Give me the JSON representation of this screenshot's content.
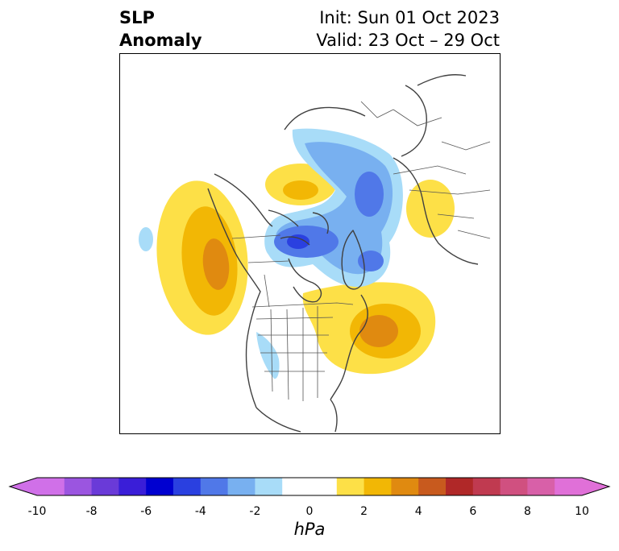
{
  "title": {
    "left_line1": "SLP",
    "left_line2": "Anomaly",
    "right_line1": "Init: Sun 01 Oct 2023",
    "right_line2": "Valid: 23 Oct – 29 Oct"
  },
  "colorbar": {
    "unit": "hPa",
    "ticks": [
      "-10",
      "-8",
      "-6",
      "-4",
      "-2",
      "0",
      "2",
      "4",
      "6",
      "8",
      "10"
    ],
    "tick_values": [
      -10,
      -8,
      -6,
      -4,
      -2,
      0,
      2,
      4,
      6,
      8,
      10
    ],
    "range": [
      -10,
      10
    ],
    "extend": "both",
    "levels": [
      {
        "from": -10,
        "to": -9,
        "color": "#d070e8"
      },
      {
        "from": -9,
        "to": -8,
        "color": "#9b55e0"
      },
      {
        "from": -8,
        "to": -7,
        "color": "#6a3ad8"
      },
      {
        "from": -7,
        "to": -6,
        "color": "#3a1ed8"
      },
      {
        "from": -6,
        "to": -5,
        "color": "#0000d0"
      },
      {
        "from": -5,
        "to": -4,
        "color": "#2a40e0"
      },
      {
        "from": -4,
        "to": -3,
        "color": "#5078e8"
      },
      {
        "from": -3,
        "to": -2,
        "color": "#78b0f0"
      },
      {
        "from": -2,
        "to": -1,
        "color": "#a8dcf8"
      },
      {
        "from": -1,
        "to": 1,
        "color": "#ffffff"
      },
      {
        "from": 1,
        "to": 2,
        "color": "#fde047"
      },
      {
        "from": 2,
        "to": 3,
        "color": "#f2b705"
      },
      {
        "from": 3,
        "to": 4,
        "color": "#e08a10"
      },
      {
        "from": 4,
        "to": 5,
        "color": "#c85a1e"
      },
      {
        "from": 5,
        "to": 6,
        "color": "#b02828"
      },
      {
        "from": 6,
        "to": 7,
        "color": "#c03a50"
      },
      {
        "from": 7,
        "to": 8,
        "color": "#d05080"
      },
      {
        "from": 8,
        "to": 9,
        "color": "#d860a8"
      },
      {
        "from": 9,
        "to": 10,
        "color": "#e070d8"
      }
    ],
    "under_color": "#d070e8",
    "over_color": "#e070d8"
  },
  "map": {
    "projection": "north-polar-stereographic",
    "features": [
      "coastlines",
      "country-borders",
      "state-borders"
    ]
  }
}
